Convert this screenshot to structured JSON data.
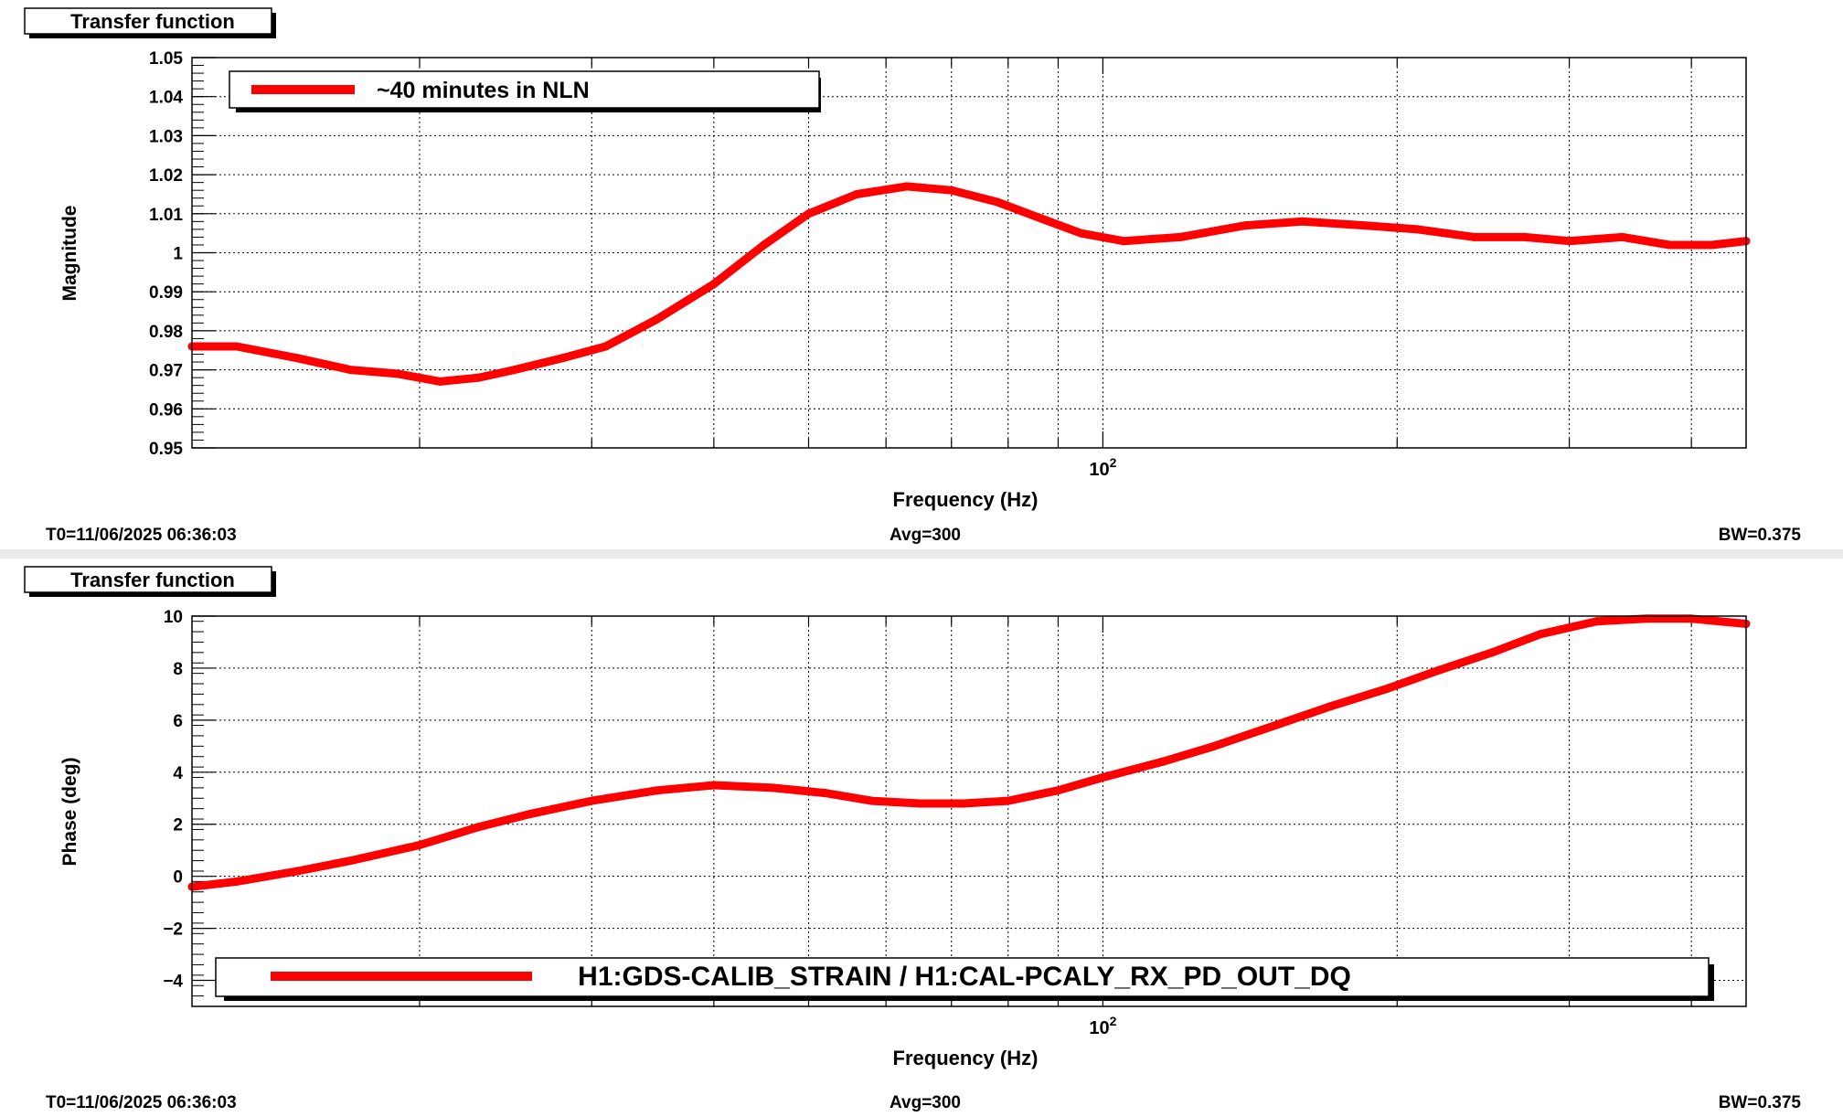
{
  "panels": [
    {
      "title": "Transfer function",
      "footer": {
        "t0": "T0=11/06/2025 06:36:03",
        "avg": "Avg=300",
        "bw": "BW=0.375"
      },
      "legend": "~40 minutes in NLN",
      "legend_placement": "top-left"
    },
    {
      "title": "Transfer function",
      "footer": {
        "t0": "T0=11/06/2025 06:36:03",
        "avg": "Avg=300",
        "bw": "BW=0.375"
      },
      "legend": "H1:GDS-CALIB_STRAIN / H1:CAL-PCALY_RX_PD_OUT_DQ",
      "legend_placement": "bottom"
    }
  ],
  "chart_data": [
    {
      "type": "line",
      "title": "Transfer function",
      "xlabel": "Frequency (Hz)",
      "ylabel": "Magnitude",
      "x_scale": "log",
      "xlim": [
        11.7,
        455
      ],
      "x_tick_label": "10^2",
      "ylim": [
        0.95,
        1.05
      ],
      "y_ticks": [
        "0.95",
        "0.96",
        "0.97",
        "0.98",
        "0.99",
        "1",
        "1.01",
        "1.02",
        "1.03",
        "1.04",
        "1.05"
      ],
      "grid": true,
      "series": [
        {
          "name": "~40 minutes in NLN",
          "color": "#ff0000",
          "x": [
            11.7,
            13,
            15,
            17,
            19,
            21,
            23,
            25,
            28,
            31,
            35,
            40,
            45,
            50,
            56,
            63,
            70,
            78,
            86,
            95,
            105,
            120,
            140,
            160,
            185,
            210,
            240,
            270,
            300,
            340,
            380,
            420,
            455
          ],
          "y": [
            0.976,
            0.976,
            0.973,
            0.97,
            0.969,
            0.967,
            0.968,
            0.97,
            0.973,
            0.976,
            0.983,
            0.992,
            1.002,
            1.01,
            1.015,
            1.017,
            1.016,
            1.013,
            1.009,
            1.005,
            1.003,
            1.004,
            1.007,
            1.008,
            1.007,
            1.006,
            1.004,
            1.004,
            1.003,
            1.004,
            1.002,
            1.002,
            1.003
          ]
        }
      ]
    },
    {
      "type": "line",
      "title": "Transfer function",
      "xlabel": "Frequency (Hz)",
      "ylabel": "Phase (deg)",
      "x_scale": "log",
      "xlim": [
        11.7,
        455
      ],
      "x_tick_label": "10^2",
      "ylim": [
        -5,
        10
      ],
      "y_ticks": [
        "−4",
        "−2",
        "0",
        "2",
        "4",
        "6",
        "8",
        "10"
      ],
      "grid": true,
      "series": [
        {
          "name": "H1:GDS-CALIB_STRAIN / H1:CAL-PCALY_RX_PD_OUT_DQ",
          "color": "#ff0000",
          "x": [
            11.7,
            13,
            15,
            17,
            20,
            23,
            26,
            30,
            35,
            40,
            46,
            52,
            58,
            65,
            72,
            80,
            90,
            100,
            115,
            130,
            150,
            170,
            195,
            220,
            250,
            280,
            320,
            360,
            400,
            455
          ],
          "y": [
            -0.4,
            -0.2,
            0.2,
            0.6,
            1.2,
            1.9,
            2.4,
            2.9,
            3.3,
            3.5,
            3.4,
            3.2,
            2.9,
            2.8,
            2.8,
            2.9,
            3.3,
            3.8,
            4.4,
            5.0,
            5.8,
            6.5,
            7.2,
            7.9,
            8.6,
            9.3,
            9.8,
            9.9,
            9.9,
            9.7
          ]
        }
      ]
    }
  ]
}
